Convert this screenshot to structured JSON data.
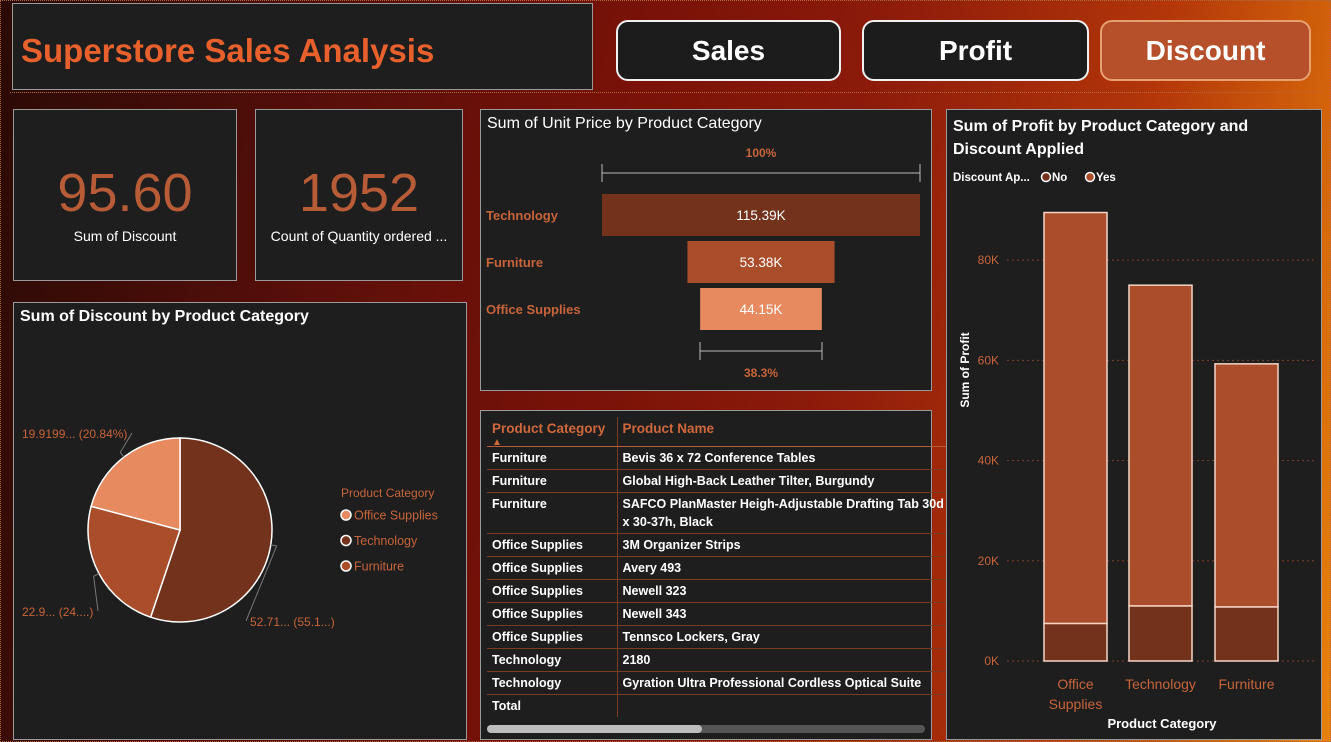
{
  "title": "Superstore Sales Analysis",
  "nav": {
    "sales": "Sales",
    "profit": "Profit",
    "discount": "Discount"
  },
  "kpi": {
    "discount_value": "95.60",
    "discount_label": "Sum of Discount",
    "qty_value": "1952",
    "qty_label": "Count of Quantity ordered ..."
  },
  "colors": {
    "tech": "#73321c",
    "furn": "#a94d2a",
    "office": "#e88a60",
    "accent": "#b85c38"
  },
  "pie": {
    "title": "Sum of Discount by Product Category",
    "legend_title": "Product Category",
    "legend": [
      "Office Supplies",
      "Technology",
      "Furniture"
    ]
  },
  "funnel": {
    "title": "Sum of Unit Price by Product Category",
    "top_pct": "100%",
    "bottom_pct": "38.3%"
  },
  "table": {
    "headers": [
      "Product Category",
      "Product Name"
    ],
    "rows": [
      [
        "Furniture",
        "Bevis 36 x 72 Conference Tables"
      ],
      [
        "Furniture",
        "Global High-Back Leather Tilter, Burgundy"
      ],
      [
        "Furniture",
        "SAFCO PlanMaster Heigh-Adjustable Drafting Tab 30d x 30-37h, Black"
      ],
      [
        "Office Supplies",
        "3M Organizer Strips"
      ],
      [
        "Office Supplies",
        "Avery 493"
      ],
      [
        "Office Supplies",
        "Newell 323"
      ],
      [
        "Office Supplies",
        "Newell 343"
      ],
      [
        "Office Supplies",
        "Tennsco Lockers, Gray"
      ],
      [
        "Technology",
        "2180"
      ],
      [
        "Technology",
        "Gyration Ultra Professional Cordless Optical Suite"
      ]
    ],
    "total_label": "Total"
  },
  "stacked": {
    "title_line1": "Sum of Profit by Product Category and",
    "title_line2": "Discount Applied",
    "legend_title": "Discount Ap...",
    "legend": [
      "No",
      "Yes"
    ]
  },
  "chart_data": [
    {
      "type": "pie",
      "title": "Sum of Discount by Product Category",
      "categories": [
        "Technology",
        "Furniture",
        "Office Supplies"
      ],
      "values": [
        52.71,
        22.9,
        19.9199
      ],
      "labels": [
        "52.71... (55.1...)",
        "22.9... (24....)",
        "19.9199... (20.84%)"
      ],
      "legend": [
        "Office Supplies",
        "Technology",
        "Furniture"
      ]
    },
    {
      "type": "bar",
      "subtype": "funnel",
      "title": "Sum of Unit Price by Product Category",
      "categories": [
        "Technology",
        "Furniture",
        "Office Supplies"
      ],
      "values": [
        115390,
        53380,
        44150
      ],
      "labels": [
        "115.39K",
        "53.38K",
        "44.15K"
      ]
    },
    {
      "type": "table",
      "columns": [
        "Product Category",
        "Product Name"
      ]
    },
    {
      "type": "bar",
      "subtype": "stacked",
      "title": "Sum of Profit by Product Category and Discount Applied",
      "xlabel": "Product Category",
      "ylabel": "Sum of Profit",
      "categories": [
        "Office Supplies",
        "Technology",
        "Furniture"
      ],
      "series": [
        {
          "name": "No",
          "values": [
            7500,
            11000,
            10800
          ]
        },
        {
          "name": "Yes",
          "values": [
            82000,
            64000,
            48500
          ]
        }
      ],
      "ylim": [
        0,
        92000
      ],
      "yticks": [
        0,
        20000,
        40000,
        60000,
        80000
      ],
      "ytick_labels": [
        "0K",
        "20K",
        "40K",
        "60K",
        "80K"
      ],
      "grid": true,
      "legend_position": "top-left"
    }
  ]
}
